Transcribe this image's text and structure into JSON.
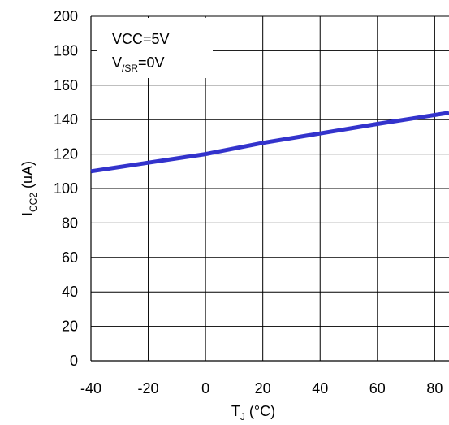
{
  "chart_data": {
    "type": "line",
    "title": "",
    "xlabel": {
      "main": "T",
      "sub": "J",
      "rest": " (°C)"
    },
    "ylabel": {
      "main": "I",
      "sub": "CC2",
      "rest": " (uA)"
    },
    "xlim": [
      -40,
      85
    ],
    "ylim": [
      0,
      200
    ],
    "x_ticks": [
      -40,
      -20,
      0,
      20,
      40,
      60,
      80
    ],
    "y_ticks": [
      0,
      20,
      40,
      60,
      80,
      100,
      120,
      140,
      160,
      180,
      200
    ],
    "grid": true,
    "annotation": {
      "line1": "VCC=5V",
      "line2_main": "V",
      "line2_sub": "/SR",
      "line2_rest": "=0V"
    },
    "series": [
      {
        "color": "#3333cc",
        "x": [
          -40,
          -20,
          0,
          20,
          40,
          60,
          85
        ],
        "y": [
          110,
          115,
          120,
          126.5,
          132,
          137.5,
          144
        ]
      }
    ]
  }
}
